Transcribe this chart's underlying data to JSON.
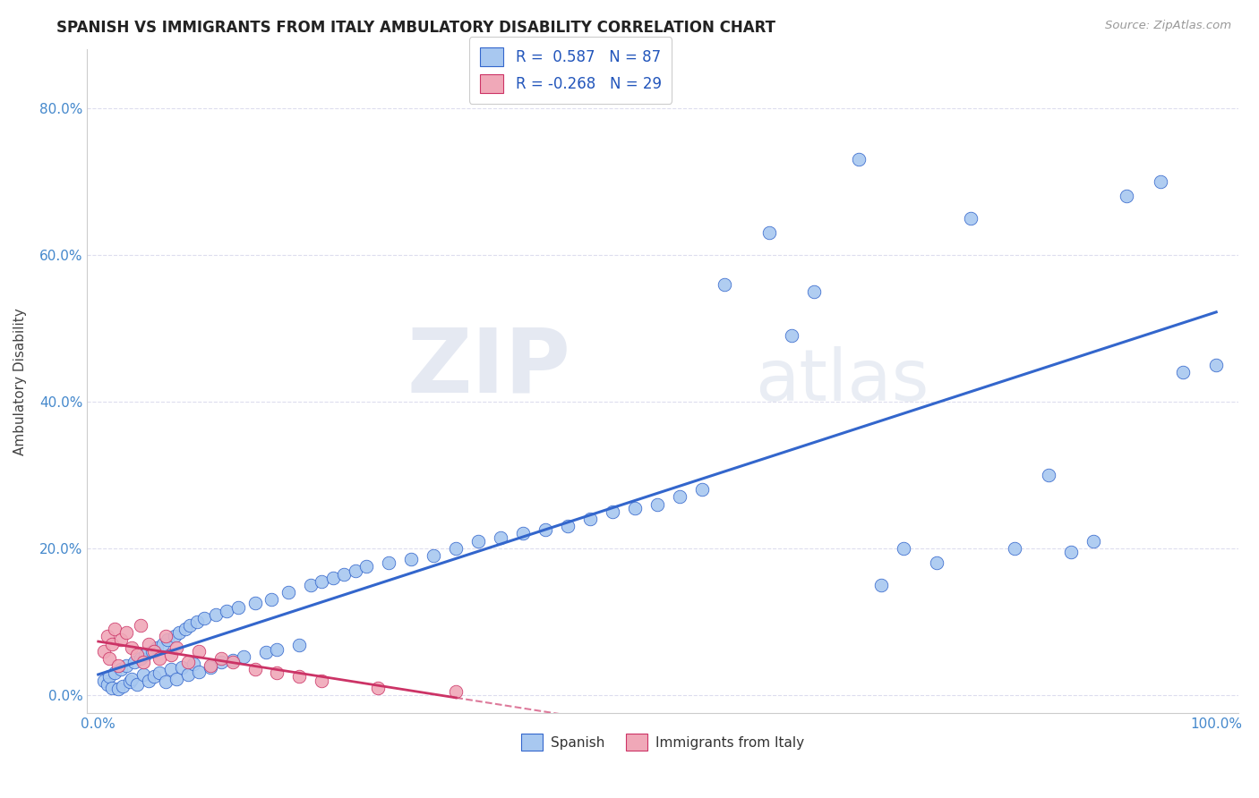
{
  "title": "SPANISH VS IMMIGRANTS FROM ITALY AMBULATORY DISABILITY CORRELATION CHART",
  "source": "Source: ZipAtlas.com",
  "ylabel": "Ambulatory Disability",
  "legend_label1": "Spanish",
  "legend_label2": "Immigrants from Italy",
  "r1": 0.587,
  "n1": 87,
  "r2": -0.268,
  "n2": 29,
  "color_blue": "#a8c8f0",
  "color_blue_dark": "#3366cc",
  "color_pink": "#f0a8b8",
  "color_pink_dark": "#cc3366",
  "watermark_zip": "ZIP",
  "watermark_atlas": "atlas",
  "blue_x": [
    0.005,
    0.008,
    0.01,
    0.012,
    0.015,
    0.018,
    0.02,
    0.022,
    0.025,
    0.028,
    0.03,
    0.032,
    0.035,
    0.038,
    0.04,
    0.042,
    0.045,
    0.048,
    0.05,
    0.052,
    0.055,
    0.058,
    0.06,
    0.062,
    0.065,
    0.068,
    0.07,
    0.072,
    0.075,
    0.078,
    0.08,
    0.082,
    0.085,
    0.088,
    0.09,
    0.095,
    0.1,
    0.105,
    0.11,
    0.115,
    0.12,
    0.125,
    0.13,
    0.14,
    0.15,
    0.155,
    0.16,
    0.17,
    0.18,
    0.19,
    0.2,
    0.21,
    0.22,
    0.23,
    0.24,
    0.26,
    0.28,
    0.3,
    0.32,
    0.34,
    0.36,
    0.38,
    0.4,
    0.42,
    0.44,
    0.46,
    0.48,
    0.5,
    0.52,
    0.54,
    0.56,
    0.6,
    0.62,
    0.64,
    0.68,
    0.7,
    0.72,
    0.75,
    0.78,
    0.82,
    0.85,
    0.87,
    0.89,
    0.92,
    0.95,
    0.97,
    1.0
  ],
  "blue_y": [
    0.02,
    0.015,
    0.025,
    0.01,
    0.03,
    0.008,
    0.035,
    0.012,
    0.04,
    0.018,
    0.022,
    0.045,
    0.015,
    0.05,
    0.028,
    0.055,
    0.02,
    0.06,
    0.025,
    0.065,
    0.03,
    0.07,
    0.018,
    0.075,
    0.035,
    0.08,
    0.022,
    0.085,
    0.038,
    0.09,
    0.028,
    0.095,
    0.042,
    0.1,
    0.032,
    0.105,
    0.038,
    0.11,
    0.045,
    0.115,
    0.048,
    0.12,
    0.052,
    0.125,
    0.058,
    0.13,
    0.062,
    0.14,
    0.068,
    0.15,
    0.155,
    0.16,
    0.165,
    0.17,
    0.175,
    0.18,
    0.185,
    0.19,
    0.2,
    0.21,
    0.215,
    0.22,
    0.225,
    0.23,
    0.24,
    0.25,
    0.255,
    0.26,
    0.27,
    0.28,
    0.56,
    0.63,
    0.49,
    0.55,
    0.73,
    0.15,
    0.2,
    0.18,
    0.65,
    0.2,
    0.3,
    0.195,
    0.21,
    0.68,
    0.7,
    0.44,
    0.45
  ],
  "pink_x": [
    0.005,
    0.008,
    0.01,
    0.012,
    0.015,
    0.018,
    0.02,
    0.025,
    0.03,
    0.035,
    0.038,
    0.04,
    0.045,
    0.05,
    0.055,
    0.06,
    0.065,
    0.07,
    0.08,
    0.09,
    0.1,
    0.11,
    0.12,
    0.14,
    0.16,
    0.18,
    0.2,
    0.25,
    0.32
  ],
  "pink_y": [
    0.06,
    0.08,
    0.05,
    0.07,
    0.09,
    0.04,
    0.075,
    0.085,
    0.065,
    0.055,
    0.095,
    0.045,
    0.07,
    0.06,
    0.05,
    0.08,
    0.055,
    0.065,
    0.045,
    0.06,
    0.04,
    0.05,
    0.045,
    0.035,
    0.03,
    0.025,
    0.02,
    0.01,
    0.005
  ],
  "ylim_max": 0.88,
  "xlim_max": 1.02,
  "yticks": [
    0.0,
    0.2,
    0.4,
    0.6,
    0.8
  ],
  "xticks": [
    0.0,
    1.0
  ],
  "tick_color": "#4488cc",
  "grid_color": "#ddddee",
  "spine_color": "#cccccc",
  "bg_color": "#ffffff"
}
